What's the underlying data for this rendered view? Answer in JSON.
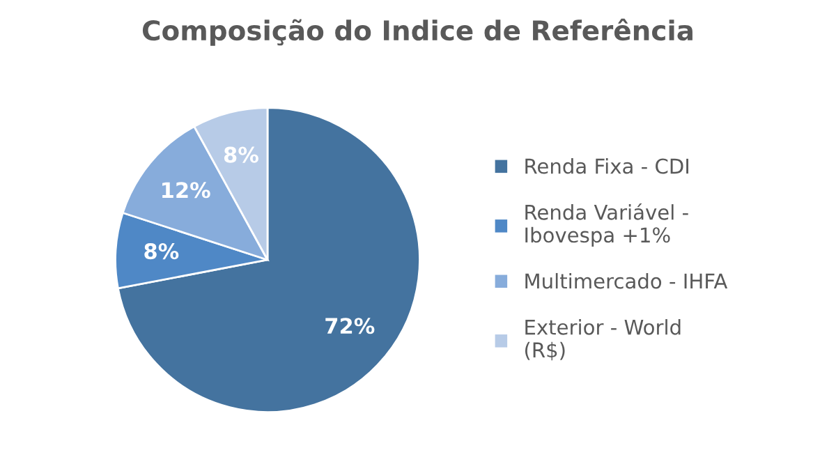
{
  "chart_data": {
    "type": "pie",
    "title": "Composição do Indice de Referência",
    "categories": [
      "Renda Fixa - CDI",
      "Renda Variável -\nIbovespa +1%",
      "Multimercado - IHFA",
      "Exterior - World\n(R$)"
    ],
    "values": [
      72,
      8,
      12,
      8
    ],
    "value_labels": [
      "72%",
      "8%",
      "12%",
      "8%"
    ],
    "colors": [
      "#44739f",
      "#4f88c6",
      "#87acdb",
      "#b7cbe7"
    ],
    "legend": "right"
  }
}
